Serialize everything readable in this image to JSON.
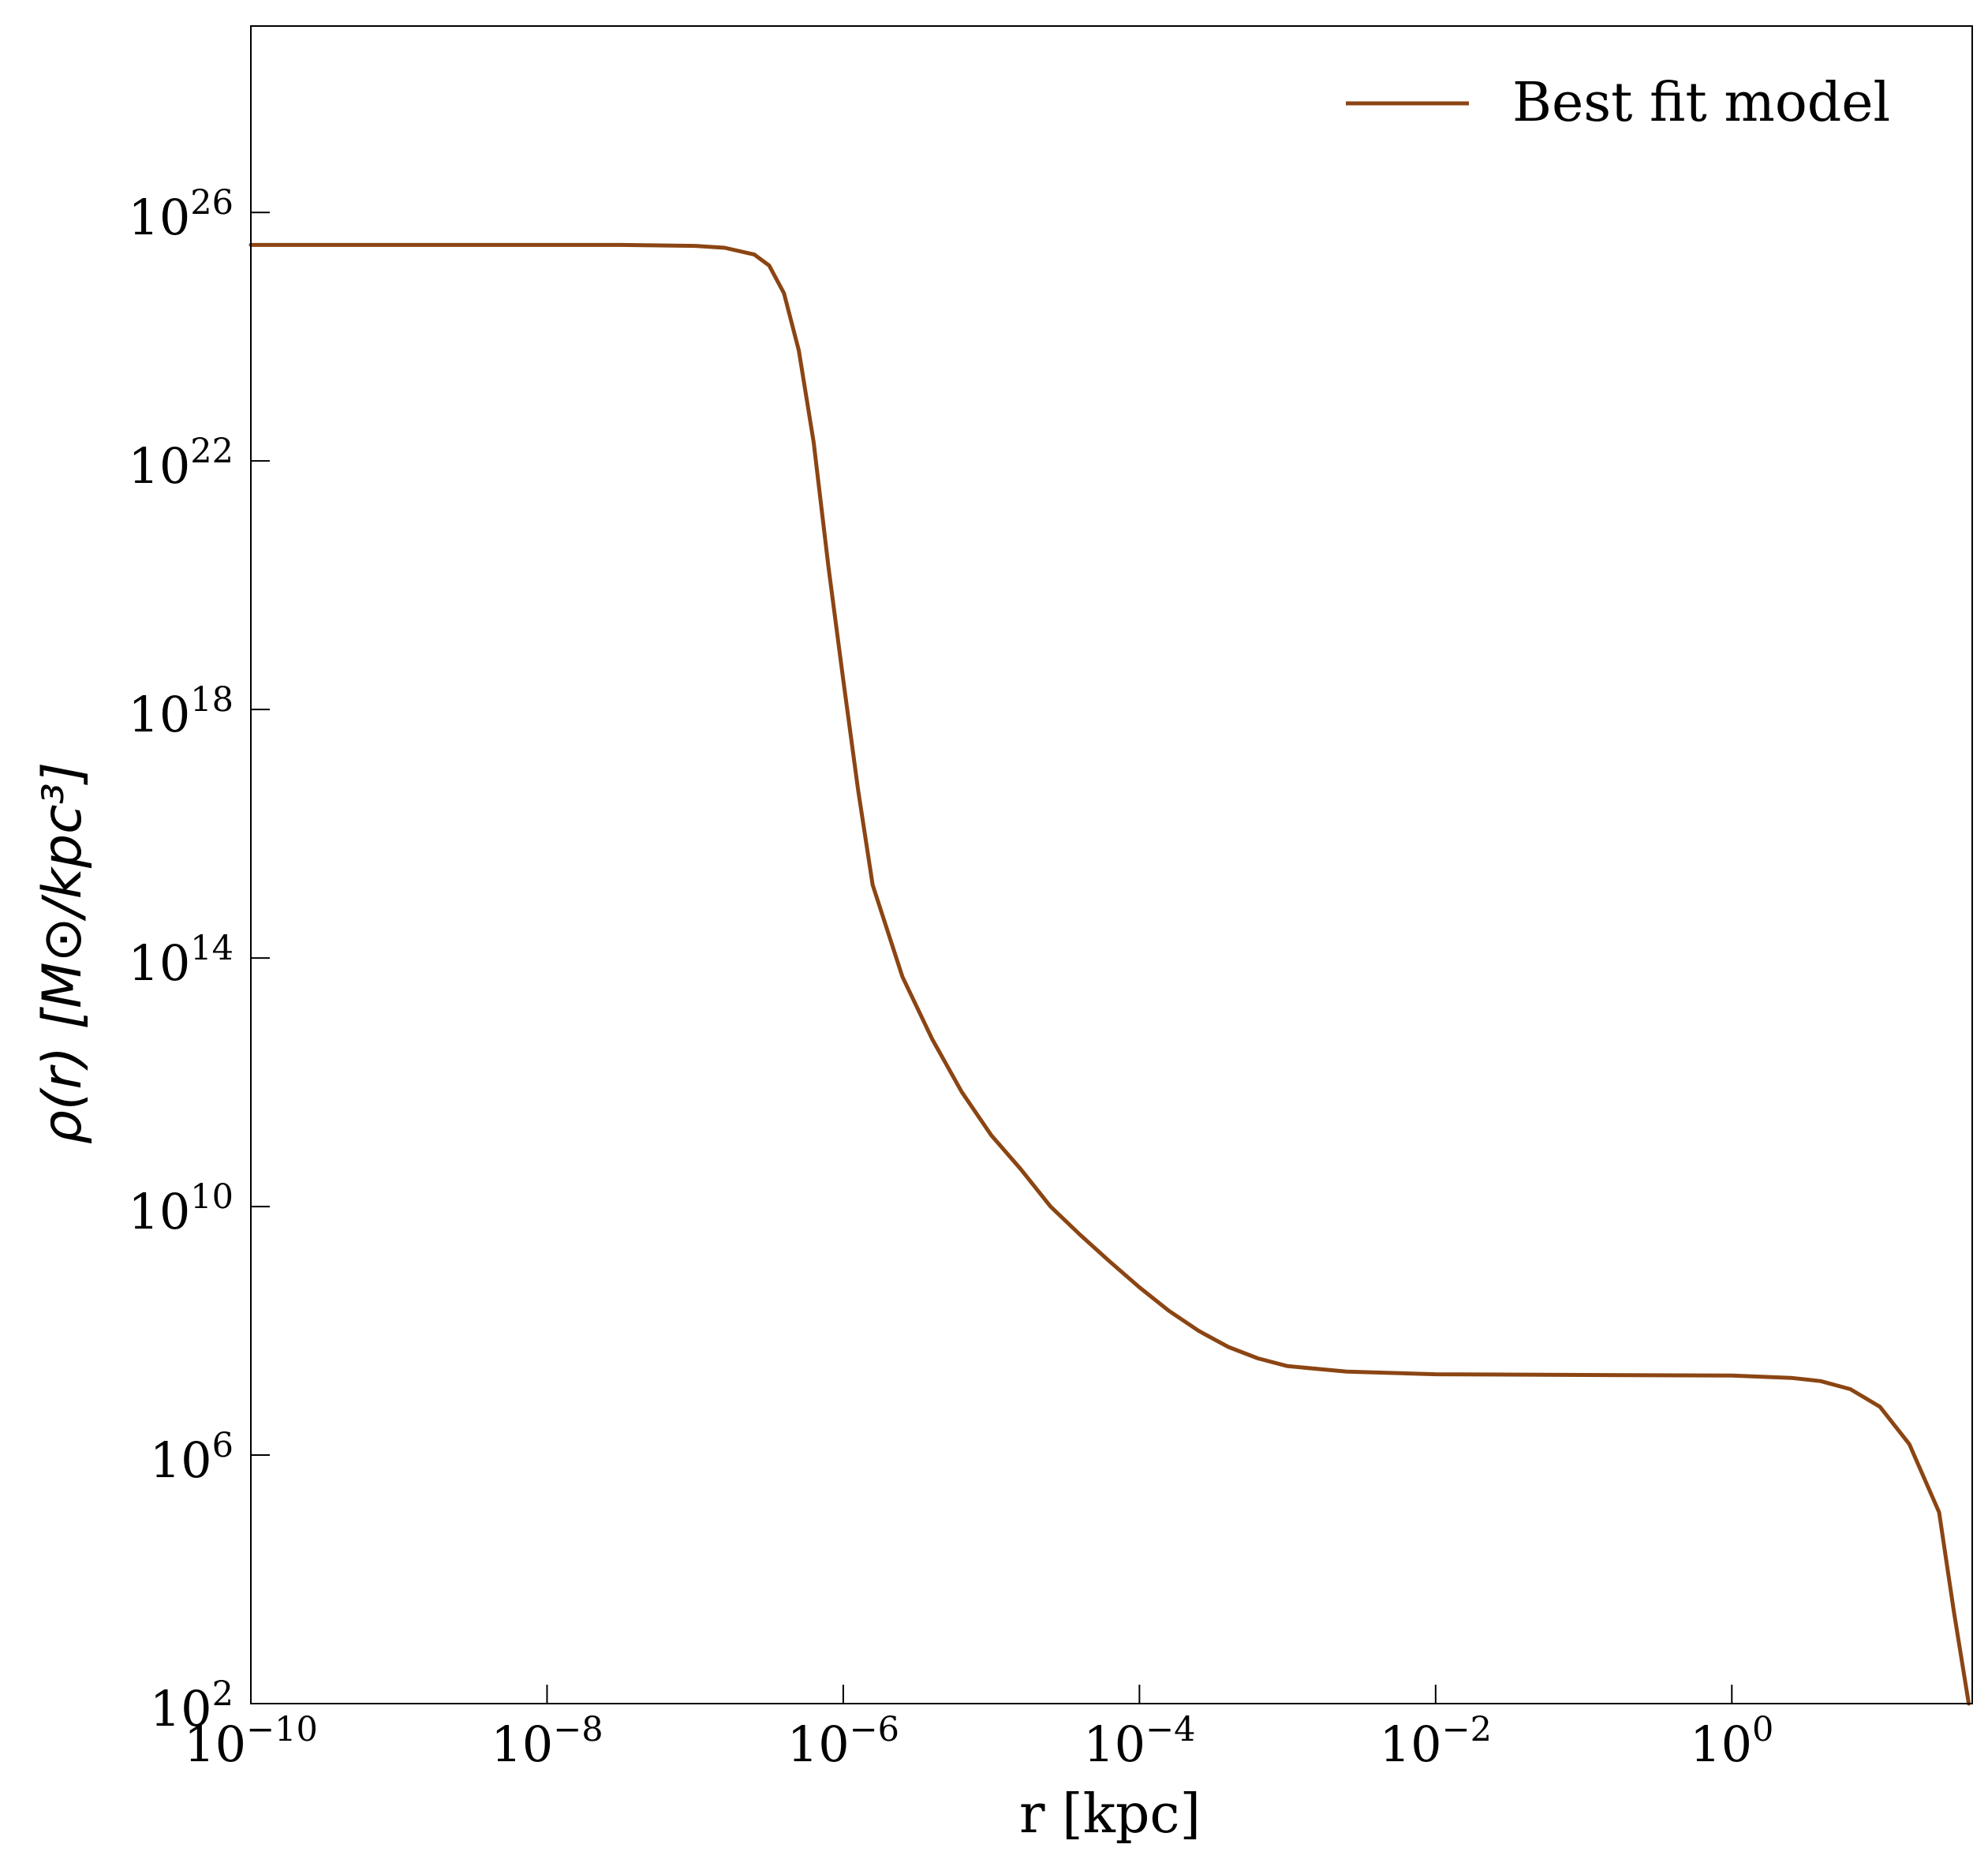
{
  "chart_data": {
    "type": "line",
    "xlabel": "r [kpc]",
    "ylabel": "ρ(r) [M⊙/kpc³]",
    "xscale": "log",
    "yscale": "log",
    "xlim": [
      1e-10,
      42
    ],
    "ylim": [
      100.0,
      1e+29
    ],
    "x_ticks": [
      {
        "base": "10",
        "exp": "−10",
        "value": 1e-10
      },
      {
        "base": "10",
        "exp": "−8",
        "value": 1e-08
      },
      {
        "base": "10",
        "exp": "−6",
        "value": 1e-06
      },
      {
        "base": "10",
        "exp": "−4",
        "value": 0.0001
      },
      {
        "base": "10",
        "exp": "−2",
        "value": 0.01
      },
      {
        "base": "10",
        "exp": "0",
        "value": 1
      }
    ],
    "y_ticks": [
      {
        "base": "10",
        "exp": "2",
        "value": 100.0
      },
      {
        "base": "10",
        "exp": "6",
        "value": 1000000.0
      },
      {
        "base": "10",
        "exp": "10",
        "value": 10000000000.0
      },
      {
        "base": "10",
        "exp": "14",
        "value": 100000000000000.0
      },
      {
        "base": "10",
        "exp": "18",
        "value": 1e+18
      },
      {
        "base": "10",
        "exp": "22",
        "value": 1e+22
      },
      {
        "base": "10",
        "exp": "26",
        "value": 1e+26
      }
    ],
    "grid": false,
    "legend": {
      "placement": "top-right",
      "entries": [
        "Best fit model"
      ]
    },
    "series": [
      {
        "name": "Best fit model",
        "color": "#8B4513",
        "x": [
          1e-10,
          1e-09,
          1e-08,
          3.16e-08,
          1e-07,
          1.58e-07,
          2.51e-07,
          3.16e-07,
          3.98e-07,
          5.01e-07,
          6.31e-07,
          7.94e-07,
          1e-06,
          1.26e-06,
          1.58e-06,
          2.51e-06,
          3.98e-06,
          6.31e-06,
          1e-05,
          1.58e-05,
          2.51e-05,
          3.98e-05,
          6.31e-05,
          0.0001,
          0.000158,
          0.000251,
          0.000398,
          0.000631,
          0.001,
          0.00251,
          0.01,
          0.1,
          1,
          2.51,
          3.98,
          6.31,
          10.0,
          15.8,
          25.1,
          31.6,
          39.8
        ],
        "y": [
          3e+25,
          3e+25,
          3e+25,
          3e+25,
          2.9e+25,
          2.7e+25,
          2.1e+25,
          1.4e+25,
          5e+24,
          6e+23,
          2e+22,
          2e+20,
          3e+18,
          5e+16,
          1500000000000000.0,
          50000000000000.0,
          5000000000000.0,
          700000000000.0,
          140000000000.0,
          40000000000.0,
          10000000000.0,
          3500000000.0,
          1300000000.0,
          500000000.0,
          210000000.0,
          100000000.0,
          55000000.0,
          36000000.0,
          27000000.0,
          22000000.0,
          20000000.0,
          19500000.0,
          19000000.0,
          17500000.0,
          15500000.0,
          11500000.0,
          6000000.0,
          1500000.0,
          120000.0,
          3000.0,
          100.0
        ]
      }
    ]
  }
}
